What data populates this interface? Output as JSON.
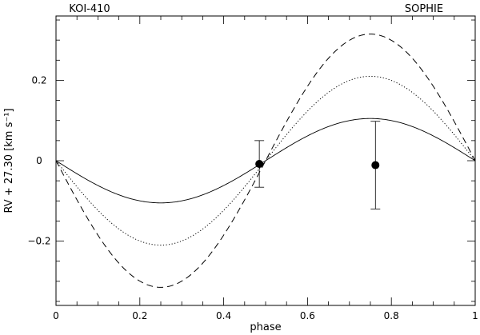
{
  "chart_data": {
    "type": "line",
    "title": "",
    "xlabel": "phase",
    "ylabel": "RV + 27.30 [km s⁻¹]",
    "xlim": [
      0,
      1
    ],
    "ylim": [
      -0.36,
      0.36
    ],
    "xticks": [
      0,
      0.2,
      0.4,
      0.6,
      0.8,
      1
    ],
    "xtick_labels": [
      "0",
      "0.2",
      "0.4",
      "0.6",
      "0.8",
      "1"
    ],
    "yticks": [
      -0.2,
      0,
      0.2
    ],
    "ytick_labels": [
      "−0.2",
      "0",
      "0.2"
    ],
    "annotations": [
      {
        "text": "KOI-410",
        "position": "top-left"
      },
      {
        "text": "SOPHIE",
        "position": "top-right"
      }
    ],
    "grid": false,
    "series": [
      {
        "style": "solid",
        "amplitude": 0.105
      },
      {
        "style": "dotted",
        "amplitude": 0.21
      },
      {
        "style": "dashed",
        "amplitude": 0.315
      }
    ],
    "points": [
      {
        "x": 0.485,
        "y": -0.008,
        "yerr": 0.058
      },
      {
        "x": 0.762,
        "y": -0.011,
        "yerr": 0.109
      }
    ]
  }
}
